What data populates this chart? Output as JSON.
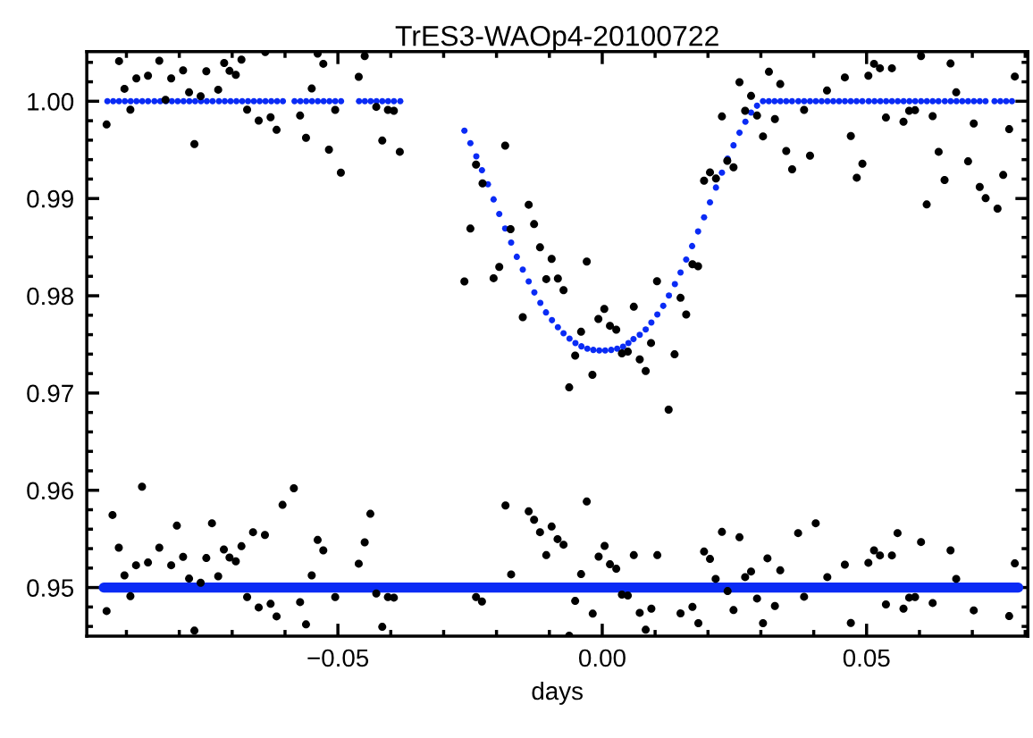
{
  "chart_data": {
    "type": "scatter",
    "title": "TrES3-WAOp4-20100722",
    "xlabel": "days",
    "xlim": [
      -0.0975,
      0.0805
    ],
    "ylim": [
      0.945,
      1.0051
    ],
    "xticks": [
      {
        "value": -0.09,
        "label": null
      },
      {
        "value": -0.08,
        "label": null
      },
      {
        "value": -0.07,
        "label": null
      },
      {
        "value": -0.06,
        "label": null
      },
      {
        "value": -0.05,
        "label": "−0.05"
      },
      {
        "value": -0.04,
        "label": null
      },
      {
        "value": -0.03,
        "label": null
      },
      {
        "value": -0.02,
        "label": null
      },
      {
        "value": -0.01,
        "label": null
      },
      {
        "value": 0.0,
        "label": "0.00"
      },
      {
        "value": 0.01,
        "label": null
      },
      {
        "value": 0.02,
        "label": null
      },
      {
        "value": 0.03,
        "label": null
      },
      {
        "value": 0.04,
        "label": null
      },
      {
        "value": 0.05,
        "label": "0.05"
      },
      {
        "value": 0.06,
        "label": null
      },
      {
        "value": 0.07,
        "label": null
      },
      {
        "value": 0.08,
        "label": null
      }
    ],
    "yticks": [
      {
        "value": 0.946,
        "label": null
      },
      {
        "value": 0.948,
        "label": null
      },
      {
        "value": 0.95,
        "label": "0.95"
      },
      {
        "value": 0.952,
        "label": null
      },
      {
        "value": 0.954,
        "label": null
      },
      {
        "value": 0.956,
        "label": null
      },
      {
        "value": 0.958,
        "label": null
      },
      {
        "value": 0.96,
        "label": "0.96"
      },
      {
        "value": 0.962,
        "label": null
      },
      {
        "value": 0.964,
        "label": null
      },
      {
        "value": 0.966,
        "label": null
      },
      {
        "value": 0.968,
        "label": null
      },
      {
        "value": 0.97,
        "label": "0.97"
      },
      {
        "value": 0.972,
        "label": null
      },
      {
        "value": 0.974,
        "label": null
      },
      {
        "value": 0.976,
        "label": null
      },
      {
        "value": 0.978,
        "label": null
      },
      {
        "value": 0.98,
        "label": "0.98"
      },
      {
        "value": 0.982,
        "label": null
      },
      {
        "value": 0.984,
        "label": null
      },
      {
        "value": 0.986,
        "label": null
      },
      {
        "value": 0.988,
        "label": null
      },
      {
        "value": 0.99,
        "label": "0.99"
      },
      {
        "value": 0.992,
        "label": null
      },
      {
        "value": 0.994,
        "label": null
      },
      {
        "value": 0.996,
        "label": null
      },
      {
        "value": 0.998,
        "label": null
      },
      {
        "value": 1.0,
        "label": "1.00"
      },
      {
        "value": 1.002,
        "label": null
      },
      {
        "value": 1.004,
        "label": null
      }
    ],
    "grid": false,
    "marker": "circle",
    "series": [
      {
        "color": "#000000",
        "x": [
          -0.09375,
          -0.09139,
          -0.09037,
          -0.08925,
          -0.08812,
          -0.08592,
          -0.08378,
          -0.0826,
          -0.08153,
          -0.07928,
          -0.07815,
          -0.07714,
          -0.07596,
          -0.07489,
          -0.07264,
          -0.07151,
          -0.0705,
          -0.06931,
          -0.06824,
          -0.06717,
          -0.06498,
          -0.06374,
          -0.06273,
          -0.0616,
          -0.05715,
          -0.05603,
          -0.05495,
          -0.05383,
          -0.05276,
          -0.05169,
          -0.05051,
          -0.04944,
          -0.04606,
          -0.04493,
          -0.04274,
          -0.04161,
          -0.04054,
          -0.03941,
          -0.03829,
          -0.02607,
          -0.02494,
          -0.02387,
          -0.02264,
          -0.02055,
          -0.01948,
          -0.01836,
          -0.01734,
          -0.01503,
          -0.01391,
          -0.01289,
          -0.01177,
          -0.01059,
          -0.00957,
          -0.00839,
          -0.00732,
          -0.00625,
          -0.00512,
          -0.004,
          -0.00293,
          -0.00186,
          -0.00073,
          0.00039,
          0.00146,
          0.00265,
          0.00372,
          0.00484,
          0.00597,
          0.00709,
          0.00822,
          0.00923,
          0.01036,
          0.01256,
          0.01368,
          0.01481,
          0.01588,
          0.01706,
          0.01813,
          0.01926,
          0.02038,
          0.02151,
          0.02264,
          0.02365,
          0.02483,
          0.02596,
          0.02703,
          0.02815,
          0.02928,
          0.03041,
          0.03153,
          0.03266,
          0.03367,
          0.0348,
          0.03592,
          0.03818,
          0.0393,
          0.04251,
          0.04589,
          0.04702,
          0.04814,
          0.04921,
          0.05034,
          0.05141,
          0.05253,
          0.05366,
          0.05479,
          0.05698,
          0.05805,
          0.05917,
          0.0603,
          0.06137,
          0.0625,
          0.06363,
          0.06475,
          0.06588,
          0.06695,
          0.0692,
          0.07027,
          0.0714,
          0.07252,
          0.07477,
          0.07584,
          0.07697,
          0.07804
        ],
        "values": [
          0.99761,
          1.00413,
          1.00128,
          0.99914,
          1.00235,
          1.00263,
          1.00416,
          1.00015,
          1.00235,
          1.00318,
          1.00092,
          0.9956,
          1.00052,
          1.00309,
          1.00119,
          1.00394,
          1.00312,
          1.00272,
          1.00428,
          0.99914,
          0.99801,
          1.00505,
          0.99835,
          0.99706,
          0.99853,
          0.99624,
          1.00131,
          1.00489,
          1.00385,
          0.99502,
          0.99911,
          0.99266,
          1.00251,
          1.00465,
          0.99942,
          0.99596,
          0.99911,
          0.99902,
          0.9948,
          0.98147,
          0.98691,
          0.99349,
          0.99156,
          0.9818,
          0.98297,
          0.99544,
          0.98685,
          0.9778,
          0.98936,
          0.98737,
          0.98498,
          0.98171,
          0.98379,
          0.98177,
          0.98058,
          0.97058,
          0.97385,
          0.9763,
          0.98352,
          0.97187,
          0.97761,
          0.97865,
          0.97691,
          0.97651,
          0.97407,
          0.97425,
          0.97887,
          0.97346,
          0.97226,
          0.97514,
          0.9815,
          0.96829,
          0.97398,
          0.97979,
          0.97807,
          0.98324,
          0.98303,
          0.99183,
          0.99269,
          0.99205,
          0.99844,
          0.99388,
          0.99321,
          1.00196,
          0.99902,
          1.00055,
          0.99853,
          0.99639,
          1.00303,
          0.99817,
          1.00177,
          0.99489,
          0.993,
          0.99911,
          0.9944,
          1.0011,
          1.00245,
          0.99642,
          0.99214,
          0.99358,
          1.00263,
          1.00385,
          1.00339,
          0.99832,
          1.00339,
          0.99789,
          0.99902,
          0.99908,
          1.00465,
          0.98939,
          0.99847,
          0.9948,
          0.9919,
          1.00388,
          1.00092,
          0.99382,
          0.99771,
          0.99119,
          0.99003,
          0.98896,
          0.99242,
          0.99713,
          1.00254
        ]
      },
      {
        "color": "#000000",
        "x": [
          -0.09375,
          -0.09263,
          -0.09144,
          -0.09037,
          -0.08925,
          -0.08818,
          -0.08705,
          -0.08592,
          -0.08378,
          -0.08153,
          -0.08046,
          -0.07928,
          -0.07815,
          -0.07714,
          -0.07596,
          -0.07489,
          -0.07382,
          -0.07264,
          -0.07157,
          -0.0705,
          -0.06931,
          -0.06824,
          -0.06717,
          -0.06605,
          -0.06498,
          -0.0638,
          -0.06273,
          -0.0616,
          -0.06047,
          -0.05833,
          -0.05715,
          -0.05603,
          -0.05495,
          -0.05383,
          -0.05276,
          -0.05051,
          -0.04606,
          -0.04493,
          -0.04386,
          -0.04274,
          -0.04161,
          -0.04054,
          -0.03941,
          -0.02387,
          -0.02275,
          -0.0183,
          -0.01723,
          -0.01391,
          -0.01289,
          -0.01177,
          -0.01059,
          -0.00957,
          -0.00845,
          -0.00732,
          -0.00625,
          -0.00512,
          -0.004,
          -0.00293,
          -0.0018,
          -0.00068,
          0.00045,
          0.00146,
          0.00265,
          0.00372,
          0.00484,
          0.00597,
          0.00709,
          0.00822,
          0.00929,
          0.01042,
          0.01481,
          0.01706,
          0.01818,
          0.01926,
          0.02038,
          0.02145,
          0.02264,
          0.02371,
          0.02483,
          0.02596,
          0.02703,
          0.02815,
          0.02928,
          0.03041,
          0.03125,
          0.03266,
          0.03367,
          0.03705,
          0.03818,
          0.04038,
          0.04257,
          0.04589,
          0.04702,
          0.05034,
          0.05141,
          0.05253,
          0.05366,
          0.05479,
          0.05586,
          0.05698,
          0.05805,
          0.05917,
          0.0603,
          0.0625,
          0.06588,
          0.06695,
          0.07027,
          0.07697,
          0.07804
        ],
        "values": [
          0.94758,
          0.95746,
          0.9541,
          0.95125,
          0.94911,
          0.95229,
          0.96037,
          0.95257,
          0.9541,
          0.95229,
          0.95636,
          0.95315,
          0.95092,
          0.94557,
          0.95049,
          0.95303,
          0.95661,
          0.95116,
          0.95391,
          0.95309,
          0.95269,
          0.95425,
          0.94902,
          0.95569,
          0.94795,
          0.95541,
          0.94832,
          0.94703,
          0.9585,
          0.96021,
          0.9485,
          0.94621,
          0.95125,
          0.95489,
          0.95382,
          0.94902,
          0.95245,
          0.95465,
          0.95758,
          0.94939,
          0.94596,
          0.94902,
          0.94896,
          0.94902,
          0.94856,
          0.95844,
          0.95135,
          0.95783,
          0.95697,
          0.95569,
          0.95333,
          0.95627,
          0.95498,
          0.9544,
          0.94505,
          0.94862,
          0.95138,
          0.95884,
          0.94731,
          0.95318,
          0.95428,
          0.95239,
          0.95193,
          0.94927,
          0.94917,
          0.95333,
          0.9474,
          0.94566,
          0.94783,
          0.95333,
          0.94734,
          0.94801,
          0.94633,
          0.9537,
          0.95294,
          0.95089,
          0.95572,
          0.94963,
          0.94768,
          0.95517,
          0.95107,
          0.95165,
          0.94887,
          0.94633,
          0.953,
          0.9481,
          0.95177,
          0.9556,
          0.94905,
          0.95661,
          0.95107,
          0.95235,
          0.94636,
          0.95254,
          0.95382,
          0.9533,
          0.94826,
          0.9533,
          0.9556,
          0.94783,
          0.94896,
          0.94902,
          0.95468,
          0.94841,
          0.95382,
          0.95089,
          0.94765,
          0.94706,
          0.95248
        ]
      },
      {
        "type": "line",
        "marker": "none",
        "color": "#0a2bf5",
        "x": [
          -0.0943,
          0.0787
        ],
        "values": [
          0.95,
          0.95
        ]
      },
      {
        "color": "#0a2bf5",
        "x": [
          -0.0936,
          -0.0925,
          -0.0914,
          -0.0903,
          -0.0892,
          -0.0881,
          -0.087,
          -0.0859,
          -0.0847,
          -0.0836,
          -0.0825,
          -0.0814,
          -0.0803,
          -0.0792,
          -0.0781,
          -0.077,
          -0.0759,
          -0.0748,
          -0.0737,
          -0.0725,
          -0.0714,
          -0.0703,
          -0.0692,
          -0.0681,
          -0.067,
          -0.0659,
          -0.0648,
          -0.0637,
          -0.0626,
          -0.0615,
          -0.0604,
          -0.0582,
          -0.0571,
          -0.056,
          -0.0549,
          -0.0538,
          -0.0527,
          -0.0516,
          -0.0505,
          -0.0494,
          -0.046,
          -0.0449,
          -0.0438,
          -0.0427,
          -0.0416,
          -0.0405,
          -0.0394,
          -0.0382,
          -0.02607,
          -0.02494,
          -0.02382,
          -0.02275,
          -0.02162,
          -0.02055,
          -0.01948,
          -0.01836,
          -0.01723,
          -0.01616,
          -0.01503,
          -0.01391,
          -0.01284,
          -0.01171,
          -0.01064,
          -0.00951,
          -0.00839,
          -0.00732,
          -0.00619,
          -0.00507,
          -0.00394,
          -0.00282,
          -0.00169,
          -0.00056,
          0.00056,
          0.00169,
          0.00282,
          0.00394,
          0.00495,
          0.00591,
          0.00709,
          0.00822,
          0.00929,
          0.01042,
          0.01154,
          0.01261,
          0.01374,
          0.01481,
          0.01588,
          0.017,
          0.01813,
          0.01926,
          0.02038,
          0.02151,
          0.02264,
          0.02371,
          0.02483,
          0.02596,
          0.02708,
          0.02815,
          0.02928,
          0.0304,
          0.0315,
          0.0326,
          0.0337,
          0.0348,
          0.0359,
          0.0371,
          0.0382,
          0.0393,
          0.0404,
          0.0415,
          0.0426,
          0.0437,
          0.0448,
          0.0459,
          0.047,
          0.0481,
          0.0492,
          0.0504,
          0.0515,
          0.0526,
          0.0537,
          0.0548,
          0.0559,
          0.057,
          0.0581,
          0.0592,
          0.0603,
          0.0614,
          0.0625,
          0.0636,
          0.0648,
          0.0659,
          0.067,
          0.0681,
          0.0692,
          0.0703,
          0.0714,
          0.0725,
          0.0742,
          0.0753,
          0.0764,
          0.0775
        ],
        "values": [
          1.0,
          1.0,
          1.0,
          1.0,
          1.0,
          1.0,
          1.0,
          1.0,
          1.0,
          1.0,
          1.0,
          1.0,
          1.0,
          1.0,
          1.0,
          1.0,
          1.0,
          1.0,
          1.0,
          1.0,
          1.0,
          1.0,
          1.0,
          1.0,
          1.0,
          1.0,
          1.0,
          1.0,
          1.0,
          1.0,
          1.0,
          1.0,
          1.0,
          1.0,
          1.0,
          1.0,
          1.0,
          1.0,
          1.0,
          1.0,
          1.0,
          1.0,
          1.0,
          1.0,
          1.0,
          1.0,
          1.0,
          1.0,
          0.99697,
          0.99569,
          0.99434,
          0.99291,
          0.99147,
          0.98991,
          0.98841,
          0.98691,
          0.98547,
          0.98401,
          0.98269,
          0.98147,
          0.98034,
          0.97927,
          0.97829,
          0.97749,
          0.97676,
          0.97615,
          0.9756,
          0.97514,
          0.9748,
          0.97456,
          0.97443,
          0.97437,
          0.97437,
          0.97443,
          0.97456,
          0.97477,
          0.97514,
          0.97554,
          0.97599,
          0.97654,
          0.97725,
          0.97807,
          0.97896,
          0.98003,
          0.98119,
          0.98239,
          0.98373,
          0.98511,
          0.98661,
          0.98807,
          0.9896,
          0.99113,
          0.99266,
          0.9941,
          0.99547,
          0.99676,
          0.99789,
          0.99884,
          0.99954,
          1.0,
          1.0,
          1.0,
          1.0,
          1.0,
          1.0,
          1.0,
          1.0,
          1.0,
          1.0,
          1.0,
          1.0,
          1.0,
          1.0,
          1.0,
          1.0,
          1.0,
          1.0,
          1.0,
          1.0,
          1.0,
          1.0,
          1.0,
          1.0,
          1.0,
          1.0,
          1.0,
          1.0,
          1.0,
          1.0,
          1.0,
          1.0,
          1.0,
          1.0,
          1.0,
          1.0,
          1.0,
          1.0,
          1.0,
          1.0,
          1.0,
          1.0,
          1.0
        ]
      }
    ]
  }
}
